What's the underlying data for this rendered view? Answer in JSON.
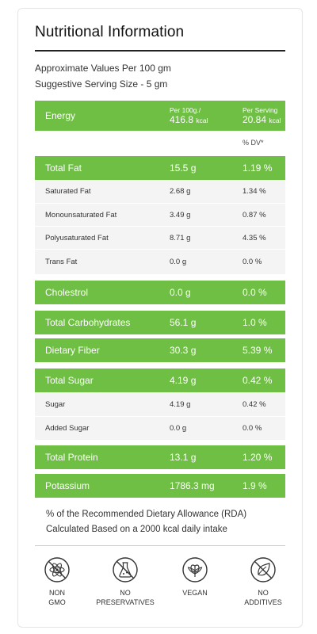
{
  "title": "Nutritional Information",
  "meta": {
    "approx": "Approximate Values Per 100 gm",
    "serving": "Suggestive Serving Size - 5 gm"
  },
  "header": {
    "label": "Energy",
    "per100_label": "Per 100g./",
    "per100_value": "416.8",
    "per100_unit": "kcal",
    "serving_label": "Per Serving",
    "serving_value": "20.84",
    "serving_unit": "kcal"
  },
  "dv_label": "% DV*",
  "rows": [
    {
      "label": "Total Fat",
      "value": "15.5 g",
      "dv": "1.19 %"
    },
    {
      "label": "Saturated Fat",
      "value": "2.68 g",
      "dv": "1.34 %"
    },
    {
      "label": "Monounsaturated Fat",
      "value": "3.49 g",
      "dv": "0.87 %"
    },
    {
      "label": "Polyusaturated Fat",
      "value": "8.71 g",
      "dv": "4.35 %"
    },
    {
      "label": "Trans Fat",
      "value": "0.0 g",
      "dv": "0.0 %"
    },
    {
      "label": "Cholestrol",
      "value": "0.0 g",
      "dv": "0.0 %"
    },
    {
      "label": "Total Carbohydrates",
      "value": "56.1 g",
      "dv": "1.0 %"
    },
    {
      "label": "Dietary Fiber",
      "value": "30.3 g",
      "dv": "5.39 %"
    },
    {
      "label": "Total Sugar",
      "value": "4.19 g",
      "dv": "0.42 %"
    },
    {
      "label": "Sugar",
      "value": "4.19 g",
      "dv": "0.42 %"
    },
    {
      "label": "Added Sugar",
      "value": "0.0 g",
      "dv": "0.0 %"
    },
    {
      "label": "Total Protein",
      "value": "13.1 g",
      "dv": "1.20 %"
    },
    {
      "label": "Potassium",
      "value": "1786.3 mg",
      "dv": "1.9 %"
    }
  ],
  "footnote": {
    "line1": "% of the Recommended Dietary Allowance (RDA)",
    "line2": "Calculated Based on a 2000 kcal daily intake"
  },
  "badges": [
    {
      "label": "NON\nGMO",
      "icon": "non-gmo-icon"
    },
    {
      "label": "NO\nPRESERVATIVES",
      "icon": "no-preservatives-icon"
    },
    {
      "label": "VEGAN",
      "icon": "vegan-leaf-icon"
    },
    {
      "label": "NO\nADDITIVES",
      "icon": "no-additives-icon"
    }
  ],
  "colors": {
    "accent": "#6fbf44",
    "row_bg": "#f4f4f4"
  }
}
